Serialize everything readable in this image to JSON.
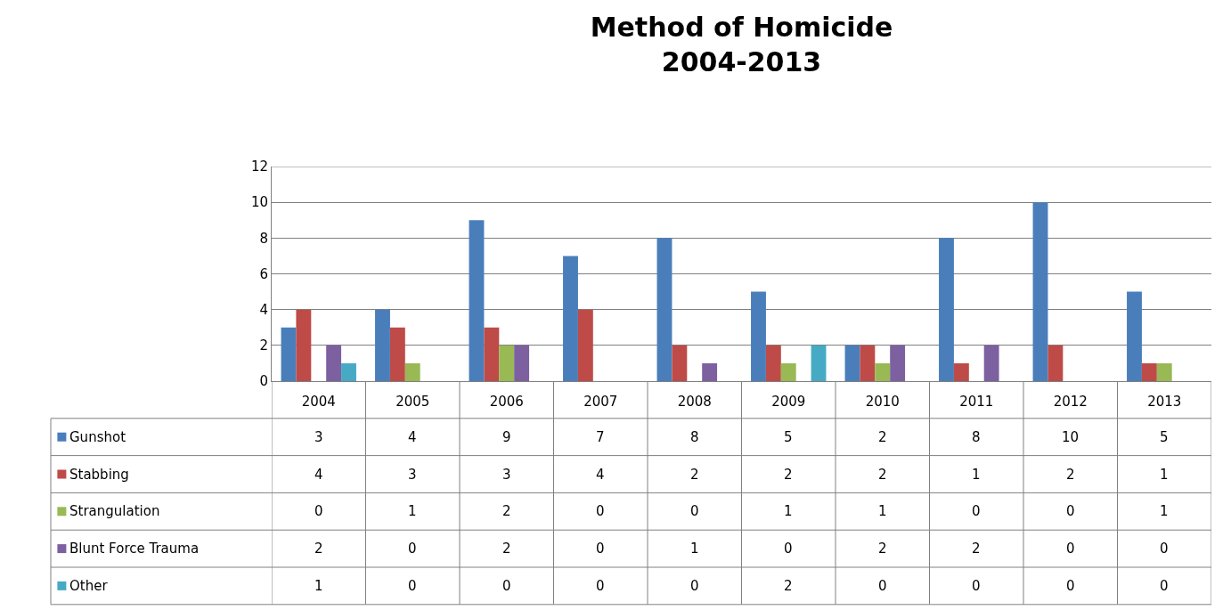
{
  "chart_data": {
    "type": "bar",
    "title": "Method of Homicide\n2004-2013",
    "categories": [
      "2004",
      "2005",
      "2006",
      "2007",
      "2008",
      "2009",
      "2010",
      "2011",
      "2012",
      "2013"
    ],
    "series": [
      {
        "name": "Gunshot",
        "color": "#4a7ebb",
        "values": [
          3,
          4,
          9,
          7,
          8,
          5,
          2,
          8,
          10,
          5
        ]
      },
      {
        "name": "Stabbing",
        "color": "#be4b48",
        "values": [
          4,
          3,
          3,
          4,
          2,
          2,
          2,
          1,
          2,
          1
        ]
      },
      {
        "name": "Strangulation",
        "color": "#98b954",
        "values": [
          0,
          1,
          2,
          0,
          0,
          1,
          1,
          0,
          0,
          1
        ]
      },
      {
        "name": "Blunt Force Trauma",
        "color": "#7d60a0",
        "values": [
          2,
          0,
          2,
          0,
          1,
          0,
          2,
          2,
          0,
          0
        ]
      },
      {
        "name": "Other",
        "color": "#46aac5",
        "values": [
          1,
          0,
          0,
          0,
          0,
          2,
          0,
          0,
          0,
          0
        ]
      }
    ],
    "ylim": [
      0,
      12
    ],
    "yticks": [
      0,
      2,
      4,
      6,
      8,
      10,
      12
    ],
    "grid": "y",
    "legend": "bottom left",
    "data_labels": true
  }
}
